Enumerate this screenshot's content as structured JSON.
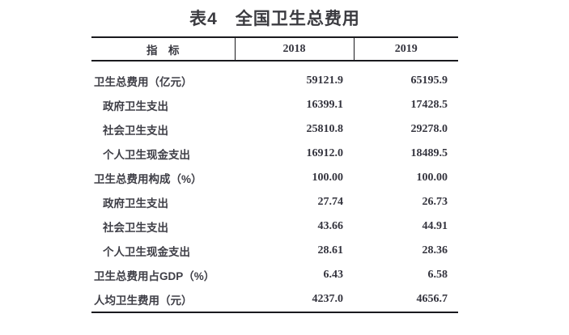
{
  "title": "表4　全国卫生总费用",
  "table": {
    "columns": [
      "指　标",
      "2018",
      "2019"
    ],
    "rows": [
      {
        "label": "卫生总费用（亿元）",
        "indent": false,
        "values": [
          "59121.9",
          "65195.9"
        ]
      },
      {
        "label": "政府卫生支出",
        "indent": true,
        "values": [
          "16399.1",
          "17428.5"
        ]
      },
      {
        "label": "社会卫生支出",
        "indent": true,
        "values": [
          "25810.8",
          "29278.0"
        ]
      },
      {
        "label": "个人卫生现金支出",
        "indent": true,
        "values": [
          "16912.0",
          "18489.5"
        ]
      },
      {
        "label": "卫生总费用构成（%）",
        "indent": false,
        "values": [
          "100.00",
          "100.00"
        ]
      },
      {
        "label": "政府卫生支出",
        "indent": true,
        "values": [
          "27.74",
          "26.73"
        ]
      },
      {
        "label": "社会卫生支出",
        "indent": true,
        "values": [
          "43.66",
          "44.91"
        ]
      },
      {
        "label": "个人卫生现金支出",
        "indent": true,
        "values": [
          "28.61",
          "28.36"
        ]
      },
      {
        "label": "卫生总费用占GDP（%）",
        "indent": false,
        "values": [
          "6.43",
          "6.58"
        ]
      },
      {
        "label": "人均卫生费用（元）",
        "indent": false,
        "values": [
          "4237.0",
          "4656.7"
        ]
      }
    ]
  },
  "colors": {
    "background": "#ffffff",
    "text": "#3e3e46",
    "number_text": "#34343e",
    "border": "#1a1a1e"
  }
}
